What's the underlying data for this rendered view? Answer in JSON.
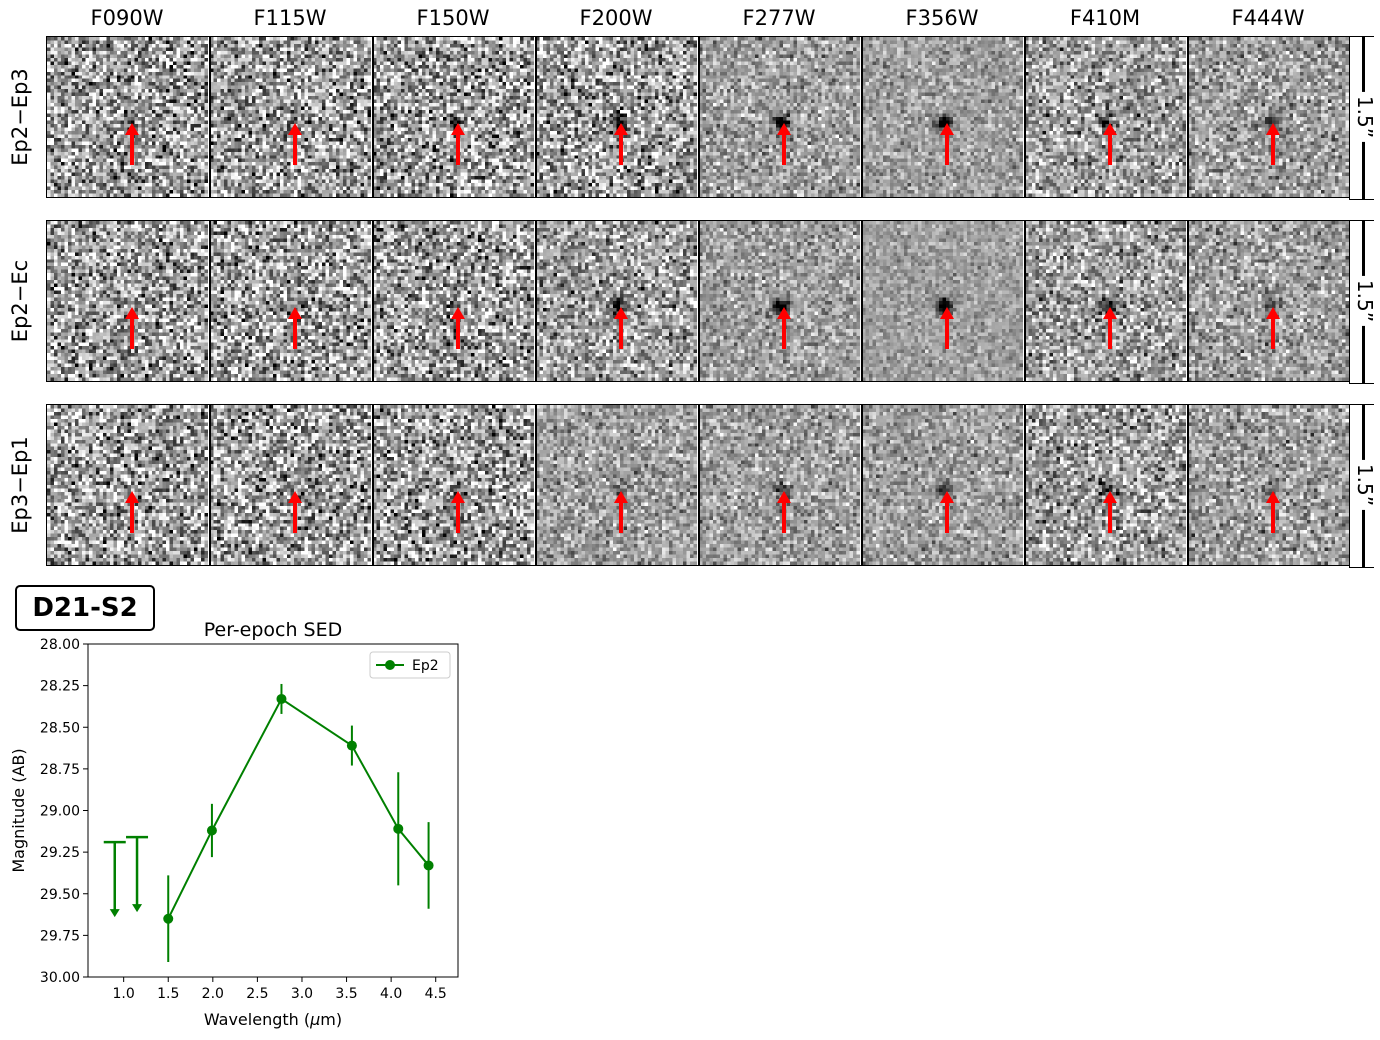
{
  "filters": [
    "F090W",
    "F115W",
    "F150W",
    "F200W",
    "F277W",
    "F356W",
    "F410M",
    "F444W"
  ],
  "rows": [
    "Ep2−Ep3",
    "Ep2−Ec",
    "Ep3−Ep1"
  ],
  "scale_label": "1.5”",
  "object_label": "D21-S2",
  "colors": {
    "arrow": "#ff0000",
    "series": "#008000"
  },
  "chart_data": {
    "type": "line",
    "title": "Per-epoch SED",
    "xlabel": "Wavelength ($\\mu$m)",
    "ylabel": "Magnitude (AB)",
    "xlim": [
      0.6,
      4.75
    ],
    "ylim": [
      30.0,
      28.0
    ],
    "y_inverted": true,
    "xticks": [
      "1.0",
      "1.5",
      "2.0",
      "2.5",
      "3.0",
      "3.5",
      "4.0",
      "4.5"
    ],
    "yticks": [
      "28.00",
      "28.25",
      "28.50",
      "28.75",
      "29.00",
      "29.25",
      "29.50",
      "29.75",
      "30.00"
    ],
    "legend": "top-right",
    "grid": false,
    "series": [
      {
        "name": "Ep2",
        "color": "#008000",
        "marker": "circle",
        "points": [
          {
            "x": 1.5,
            "y": 29.65,
            "err": 0.26
          },
          {
            "x": 1.99,
            "y": 29.12,
            "err": 0.16
          },
          {
            "x": 2.77,
            "y": 28.33,
            "err": 0.09
          },
          {
            "x": 3.56,
            "y": 28.61,
            "err": 0.12
          },
          {
            "x": 4.08,
            "y": 29.11,
            "err": 0.34
          },
          {
            "x": 4.42,
            "y": 29.33,
            "err": 0.26
          }
        ],
        "upper_limits": [
          {
            "x": 0.9,
            "y": 29.19
          },
          {
            "x": 1.15,
            "y": 29.16
          }
        ]
      }
    ]
  }
}
